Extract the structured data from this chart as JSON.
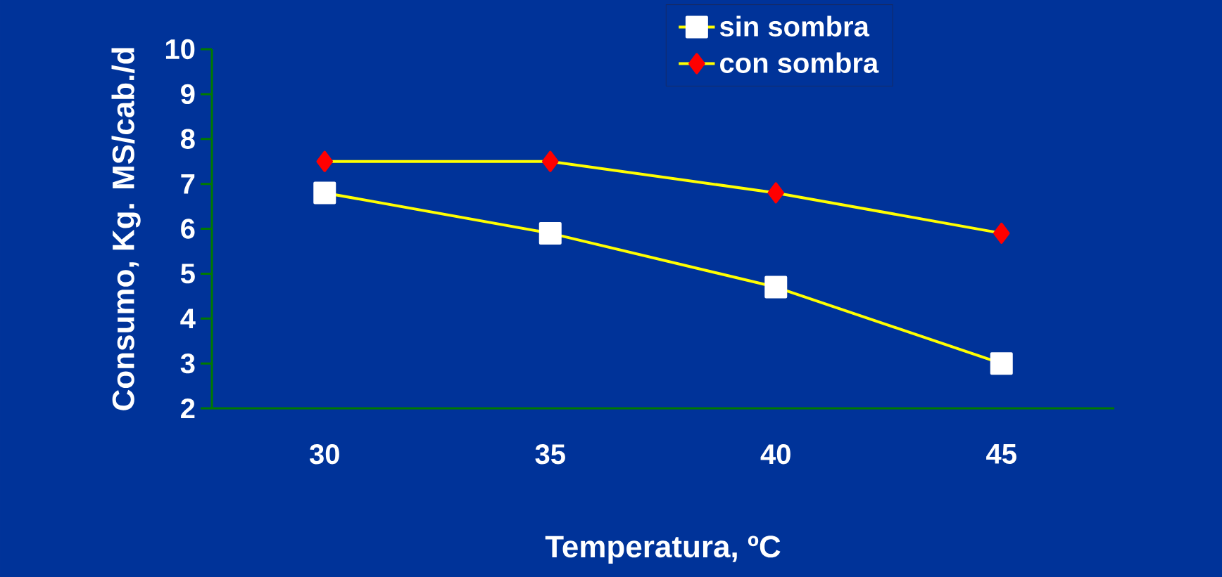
{
  "chart_data": {
    "type": "line",
    "xlabel": "Temperatura, ºC",
    "ylabel": "Consumo, Kg. MS/cab./d",
    "categories": [
      "30",
      "35",
      "40",
      "45"
    ],
    "series": [
      {
        "name": "sin sombra",
        "color": "#ffffff",
        "marker": "square",
        "values": [
          6.8,
          5.9,
          4.7,
          3.0
        ]
      },
      {
        "name": "con sombra",
        "color": "#ff0000",
        "marker": "diamond",
        "values": [
          7.5,
          7.5,
          6.8,
          5.9
        ]
      }
    ],
    "ylim": [
      2,
      10
    ],
    "yticks": [
      2,
      3,
      4,
      5,
      6,
      7,
      8,
      9,
      10
    ],
    "legend": "top right",
    "grid": false,
    "line_style": "solid"
  }
}
